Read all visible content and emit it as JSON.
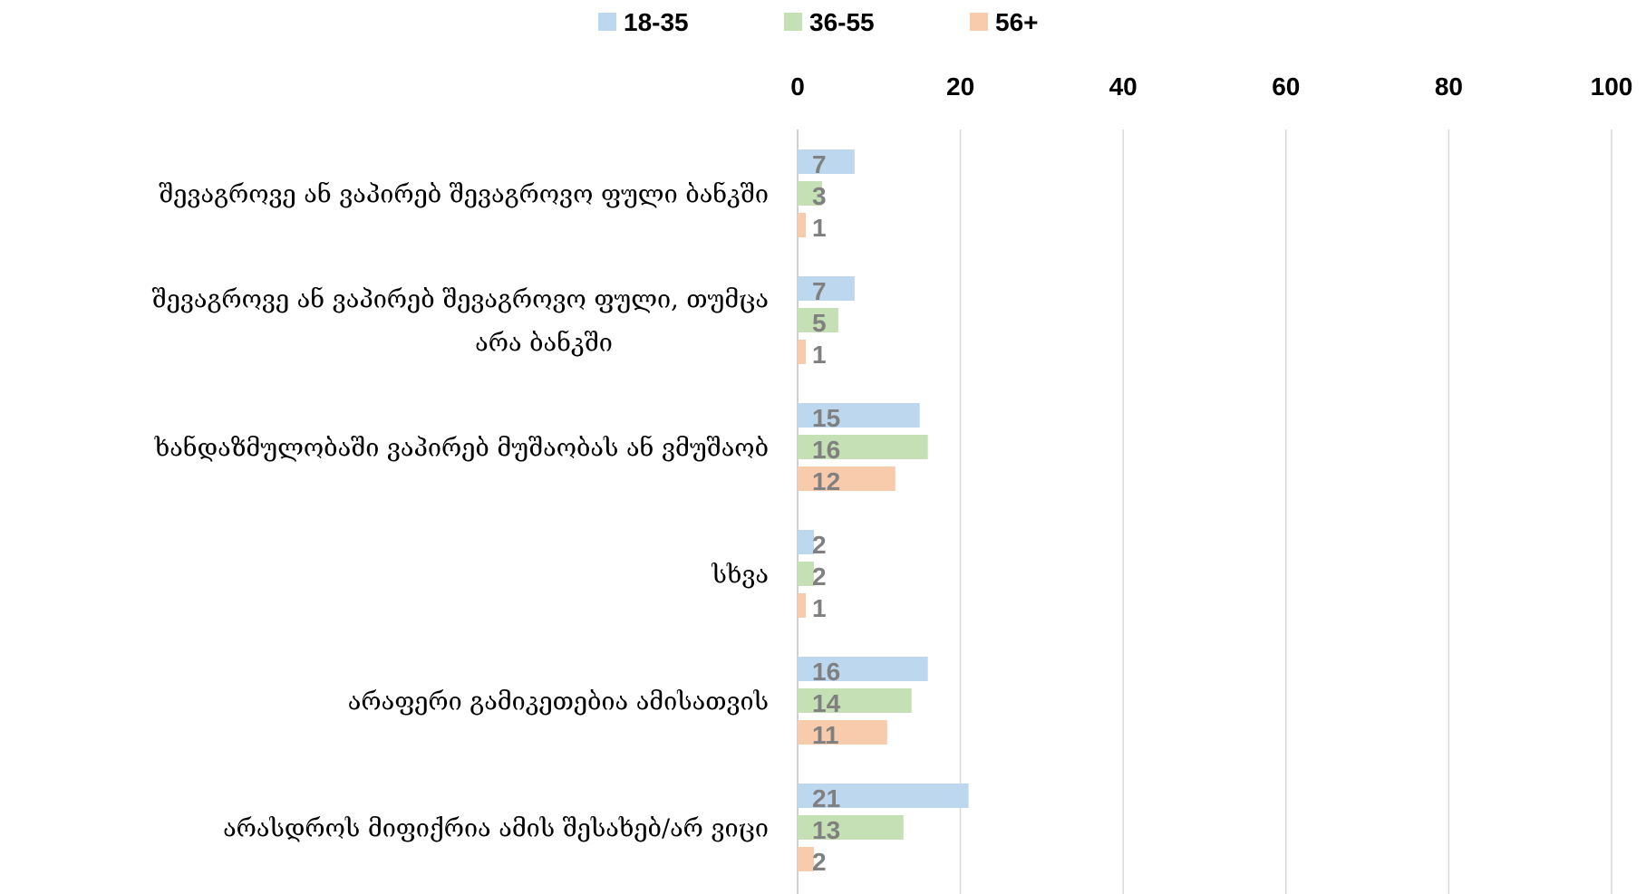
{
  "chart_data": {
    "type": "bar",
    "orientation": "horizontal",
    "title": "",
    "xlabel": "",
    "ylabel": "",
    "xlim": [
      0,
      100
    ],
    "ticks": [
      "0",
      "20",
      "40",
      "60",
      "80",
      "100"
    ],
    "tick_values": [
      0,
      20,
      40,
      60,
      80,
      100
    ],
    "grid": true,
    "legend_position": "top",
    "categories": [
      [
        "შევაგროვე ან ვაპირებ შევაგროვო ფული ბანკში"
      ],
      [
        "შევაგროვე ან ვაპირებ შევაგროვო ფული, თუმცა",
        "არა ბანკში"
      ],
      [
        "ხანდაზმულობაში ვაპირებ მუშაობას ან ვმუშაობ"
      ],
      [
        "სხვა"
      ],
      [
        "არაფერი გამიკეთებია ამისათვის"
      ],
      [
        "არასდროს მიფიქრია ამის შესახებ/არ ვიცი"
      ]
    ],
    "series": [
      {
        "name": "18-35",
        "color": "#bdd7ee",
        "values": [
          7,
          7,
          15,
          2,
          16,
          21
        ],
        "labels": [
          "7",
          "7",
          "15",
          "2",
          "16",
          "21"
        ]
      },
      {
        "name": "36-55",
        "color": "#c5e0b4",
        "values": [
          3,
          5,
          16,
          2,
          14,
          13
        ],
        "labels": [
          "3",
          "5",
          "16",
          "2",
          "14",
          "13"
        ]
      },
      {
        "name": "56+",
        "color": "#f8cbad",
        "values": [
          1,
          1,
          12,
          1,
          11,
          2
        ],
        "labels": [
          "1",
          "1",
          "12",
          "1",
          "11",
          "2"
        ]
      }
    ],
    "colors": {
      "grid": "#d9d9d9",
      "axis": "#bfbfbf",
      "data_label": "#808080"
    }
  }
}
